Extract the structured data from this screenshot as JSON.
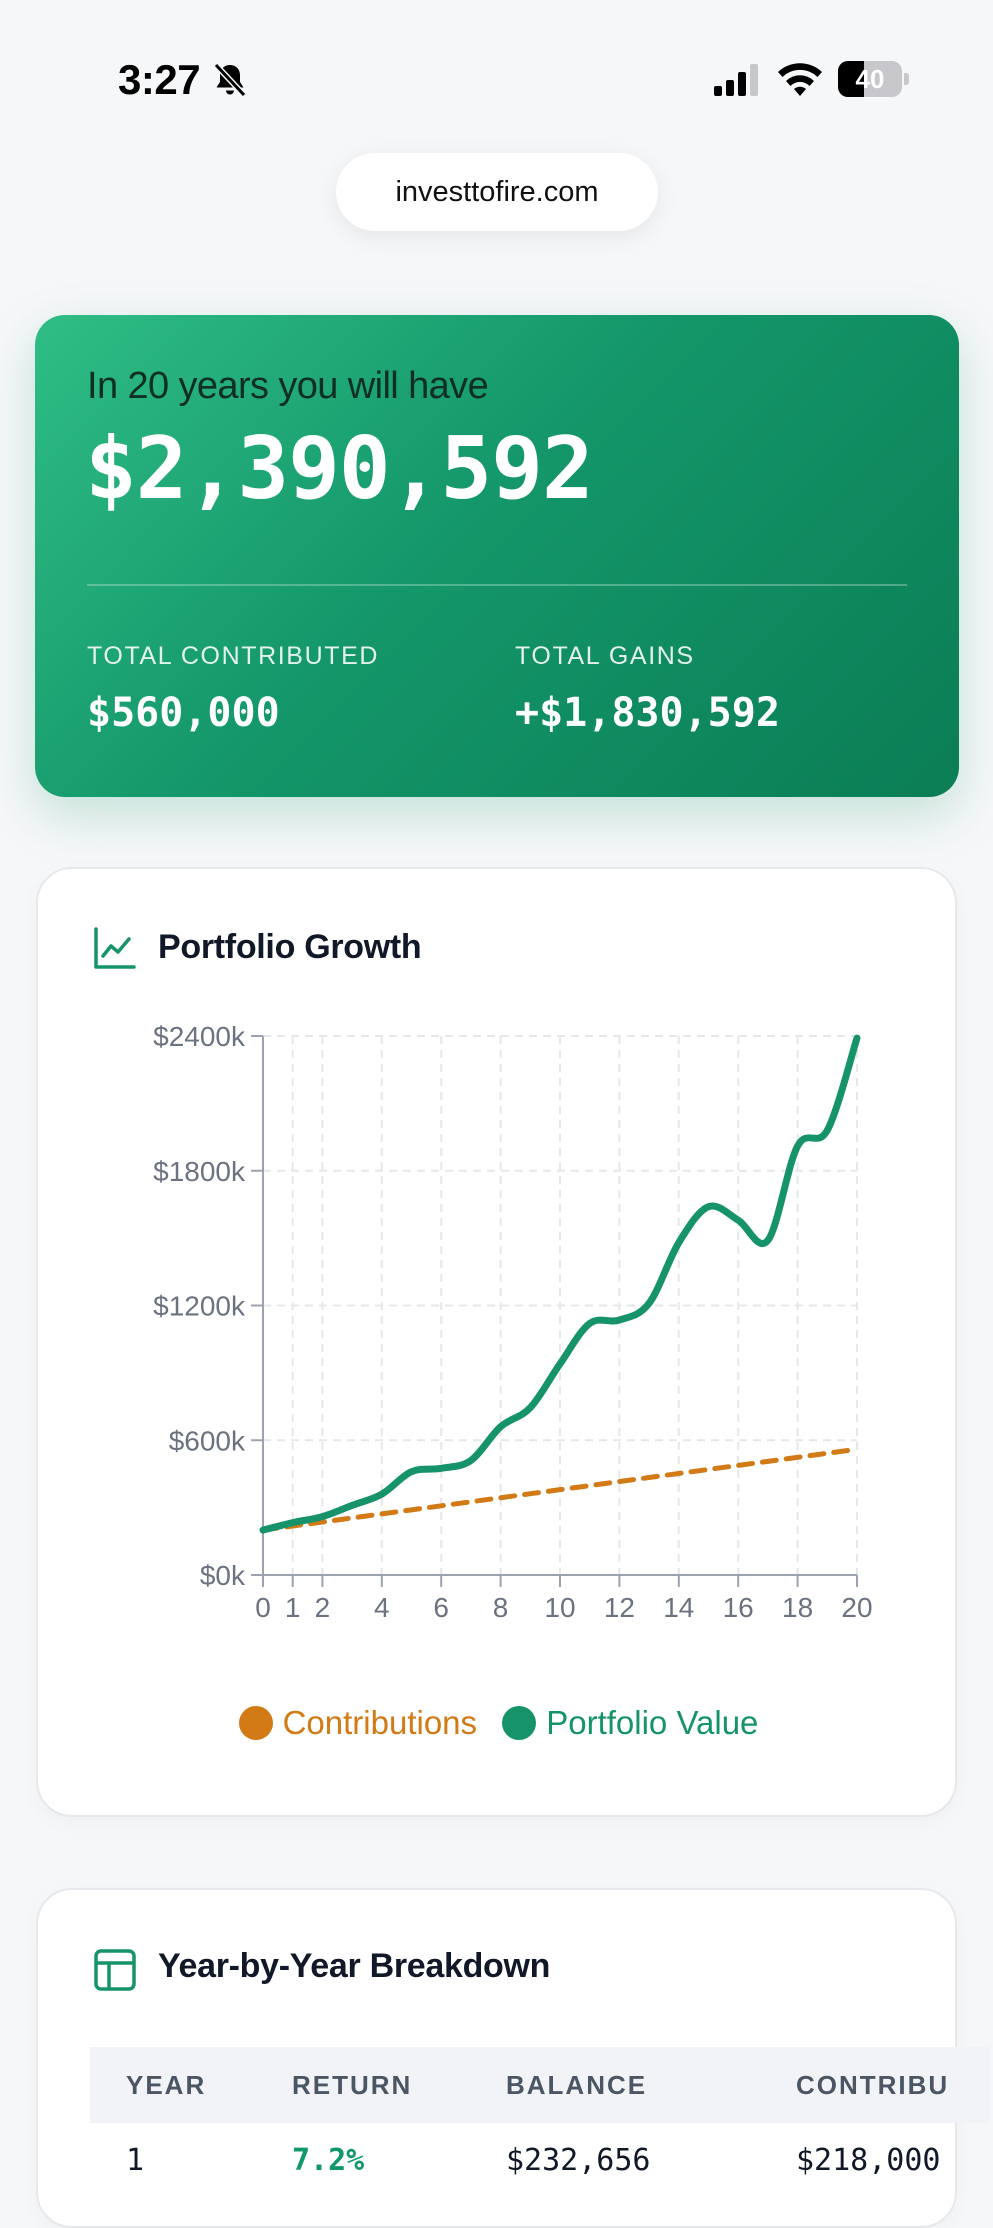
{
  "status_bar": {
    "time": "3:27",
    "battery_percent": 40,
    "battery_label": "40"
  },
  "browser": {
    "url": "investtofire.com"
  },
  "summary": {
    "intro": "In 20 years you will have",
    "total": "$2,390,592",
    "contributed_label": "TOTAL CONTRIBUTED",
    "contributed_value": "$560,000",
    "gains_label": "TOTAL GAINS",
    "gains_value": "+$1,830,592"
  },
  "growth_card": {
    "title": "Portfolio Growth",
    "icon": "line-chart-icon",
    "legend": {
      "contributions": "Contributions",
      "portfolio": "Portfolio Value"
    }
  },
  "chart_data": {
    "type": "line",
    "x": [
      0,
      1,
      2,
      3,
      4,
      5,
      6,
      7,
      8,
      9,
      10,
      11,
      12,
      13,
      14,
      15,
      16,
      17,
      18,
      19,
      20
    ],
    "x_ticks": [
      0,
      1,
      2,
      4,
      6,
      8,
      10,
      12,
      14,
      16,
      18,
      20
    ],
    "y_ticks": [
      0,
      600,
      1200,
      1800,
      2400
    ],
    "y_tick_labels": [
      "$0k",
      "$600k",
      "$1200k",
      "$1800k",
      "$2400k"
    ],
    "xlim": [
      0,
      20
    ],
    "ylim": [
      0,
      2400
    ],
    "grid": true,
    "legend_position": "bottom",
    "series": [
      {
        "name": "Contributions",
        "style": "dashed",
        "color": "#d17a16",
        "values": [
          200,
          218,
          236,
          254,
          272,
          290,
          308,
          326,
          344,
          362,
          380,
          398,
          416,
          434,
          452,
          470,
          488,
          506,
          524,
          542,
          560
        ]
      },
      {
        "name": "Portfolio Value",
        "style": "solid",
        "color": "#16936a",
        "values": [
          200,
          233,
          260,
          310,
          360,
          460,
          475,
          510,
          660,
          745,
          940,
          1120,
          1135,
          1210,
          1480,
          1640,
          1580,
          1490,
          1910,
          1980,
          2390.592
        ]
      }
    ]
  },
  "breakdown_card": {
    "title": "Year-by-Year Breakdown",
    "icon": "table-icon",
    "columns": [
      "YEAR",
      "RETURN",
      "BALANCE",
      "CONTRIBU"
    ],
    "rows": [
      {
        "year": "1",
        "return": "7.2%",
        "balance": "$232,656",
        "contributed": "$218,000"
      }
    ]
  },
  "colors": {
    "accent": "#16936a",
    "contributions": "#d17a16",
    "hero_start": "#2fbd85",
    "hero_end": "#0b7d55"
  }
}
